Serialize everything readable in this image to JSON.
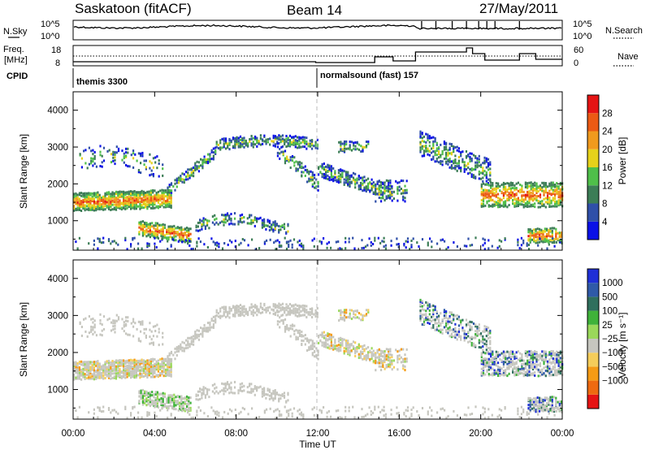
{
  "header": {
    "station": "Saskatoon (fitACF)",
    "beam": "Beam 14",
    "date": "27/May/2011"
  },
  "noise_panel": {
    "left_label": "N.Sky",
    "right_label": "N.Search",
    "left_ticks": [
      "10^5",
      "10^0"
    ],
    "right_ticks": [
      "10^5",
      "10^0"
    ]
  },
  "freq_panel": {
    "left_label_1": "Freq.",
    "left_label_2": "[MHz]",
    "right_label": "Nave",
    "left_ticks": [
      "18",
      "8"
    ],
    "right_ticks": [
      "60",
      "0"
    ]
  },
  "cpid": {
    "label": "CPID",
    "entries": [
      {
        "name": "themis 3300",
        "start_hour": 0
      },
      {
        "name": "normalsound (fast) 157",
        "start_hour": 12
      }
    ]
  },
  "x_axis": {
    "label": "Time UT",
    "range_hours": [
      0,
      24
    ],
    "ticks": [
      "00:00",
      "04:00",
      "08:00",
      "12:00",
      "16:00",
      "20:00",
      "00:00"
    ]
  },
  "colors": {
    "power": [
      "#0a10e6",
      "#2f4fa8",
      "#3c7d56",
      "#4fbf4a",
      "#e6d11a",
      "#f09a1e",
      "#eb5a14",
      "#e51414"
    ],
    "velocity": [
      "#e51414",
      "#ee6a10",
      "#f59b15",
      "#f5cd5a",
      "#c6c6bf",
      "#9ad85a",
      "#3fb23a",
      "#2f6f5d",
      "#2f5aa8",
      "#1f2fd6"
    ],
    "ground": "#c6c6bf"
  },
  "chart_data": [
    {
      "type": "heatmap",
      "title": "",
      "xlabel": "Time UT",
      "ylabel": "Slant Range [km]",
      "xlim": [
        0,
        24
      ],
      "ylim": [
        200,
        4500
      ],
      "yticks": [
        "1000",
        "2000",
        "3000",
        "4000"
      ],
      "colorbar": {
        "label": "Power [dB]",
        "ticks": [
          "4",
          "8",
          "12",
          "16",
          "20",
          "24",
          "28"
        ],
        "range": [
          0,
          32
        ]
      }
    },
    {
      "type": "heatmap",
      "title": "",
      "xlabel": "Time UT",
      "ylabel": "Slant Range [km]",
      "xlim": [
        0,
        24
      ],
      "ylim": [
        200,
        4500
      ],
      "yticks": [
        "1000",
        "2000",
        "3000",
        "4000"
      ],
      "colorbar": {
        "label": "Velocity [m s⁻¹]",
        "ticks": [
          "1000",
          "500",
          "100",
          "25",
          "−25",
          "−100",
          "−500",
          "−1000"
        ]
      }
    }
  ]
}
